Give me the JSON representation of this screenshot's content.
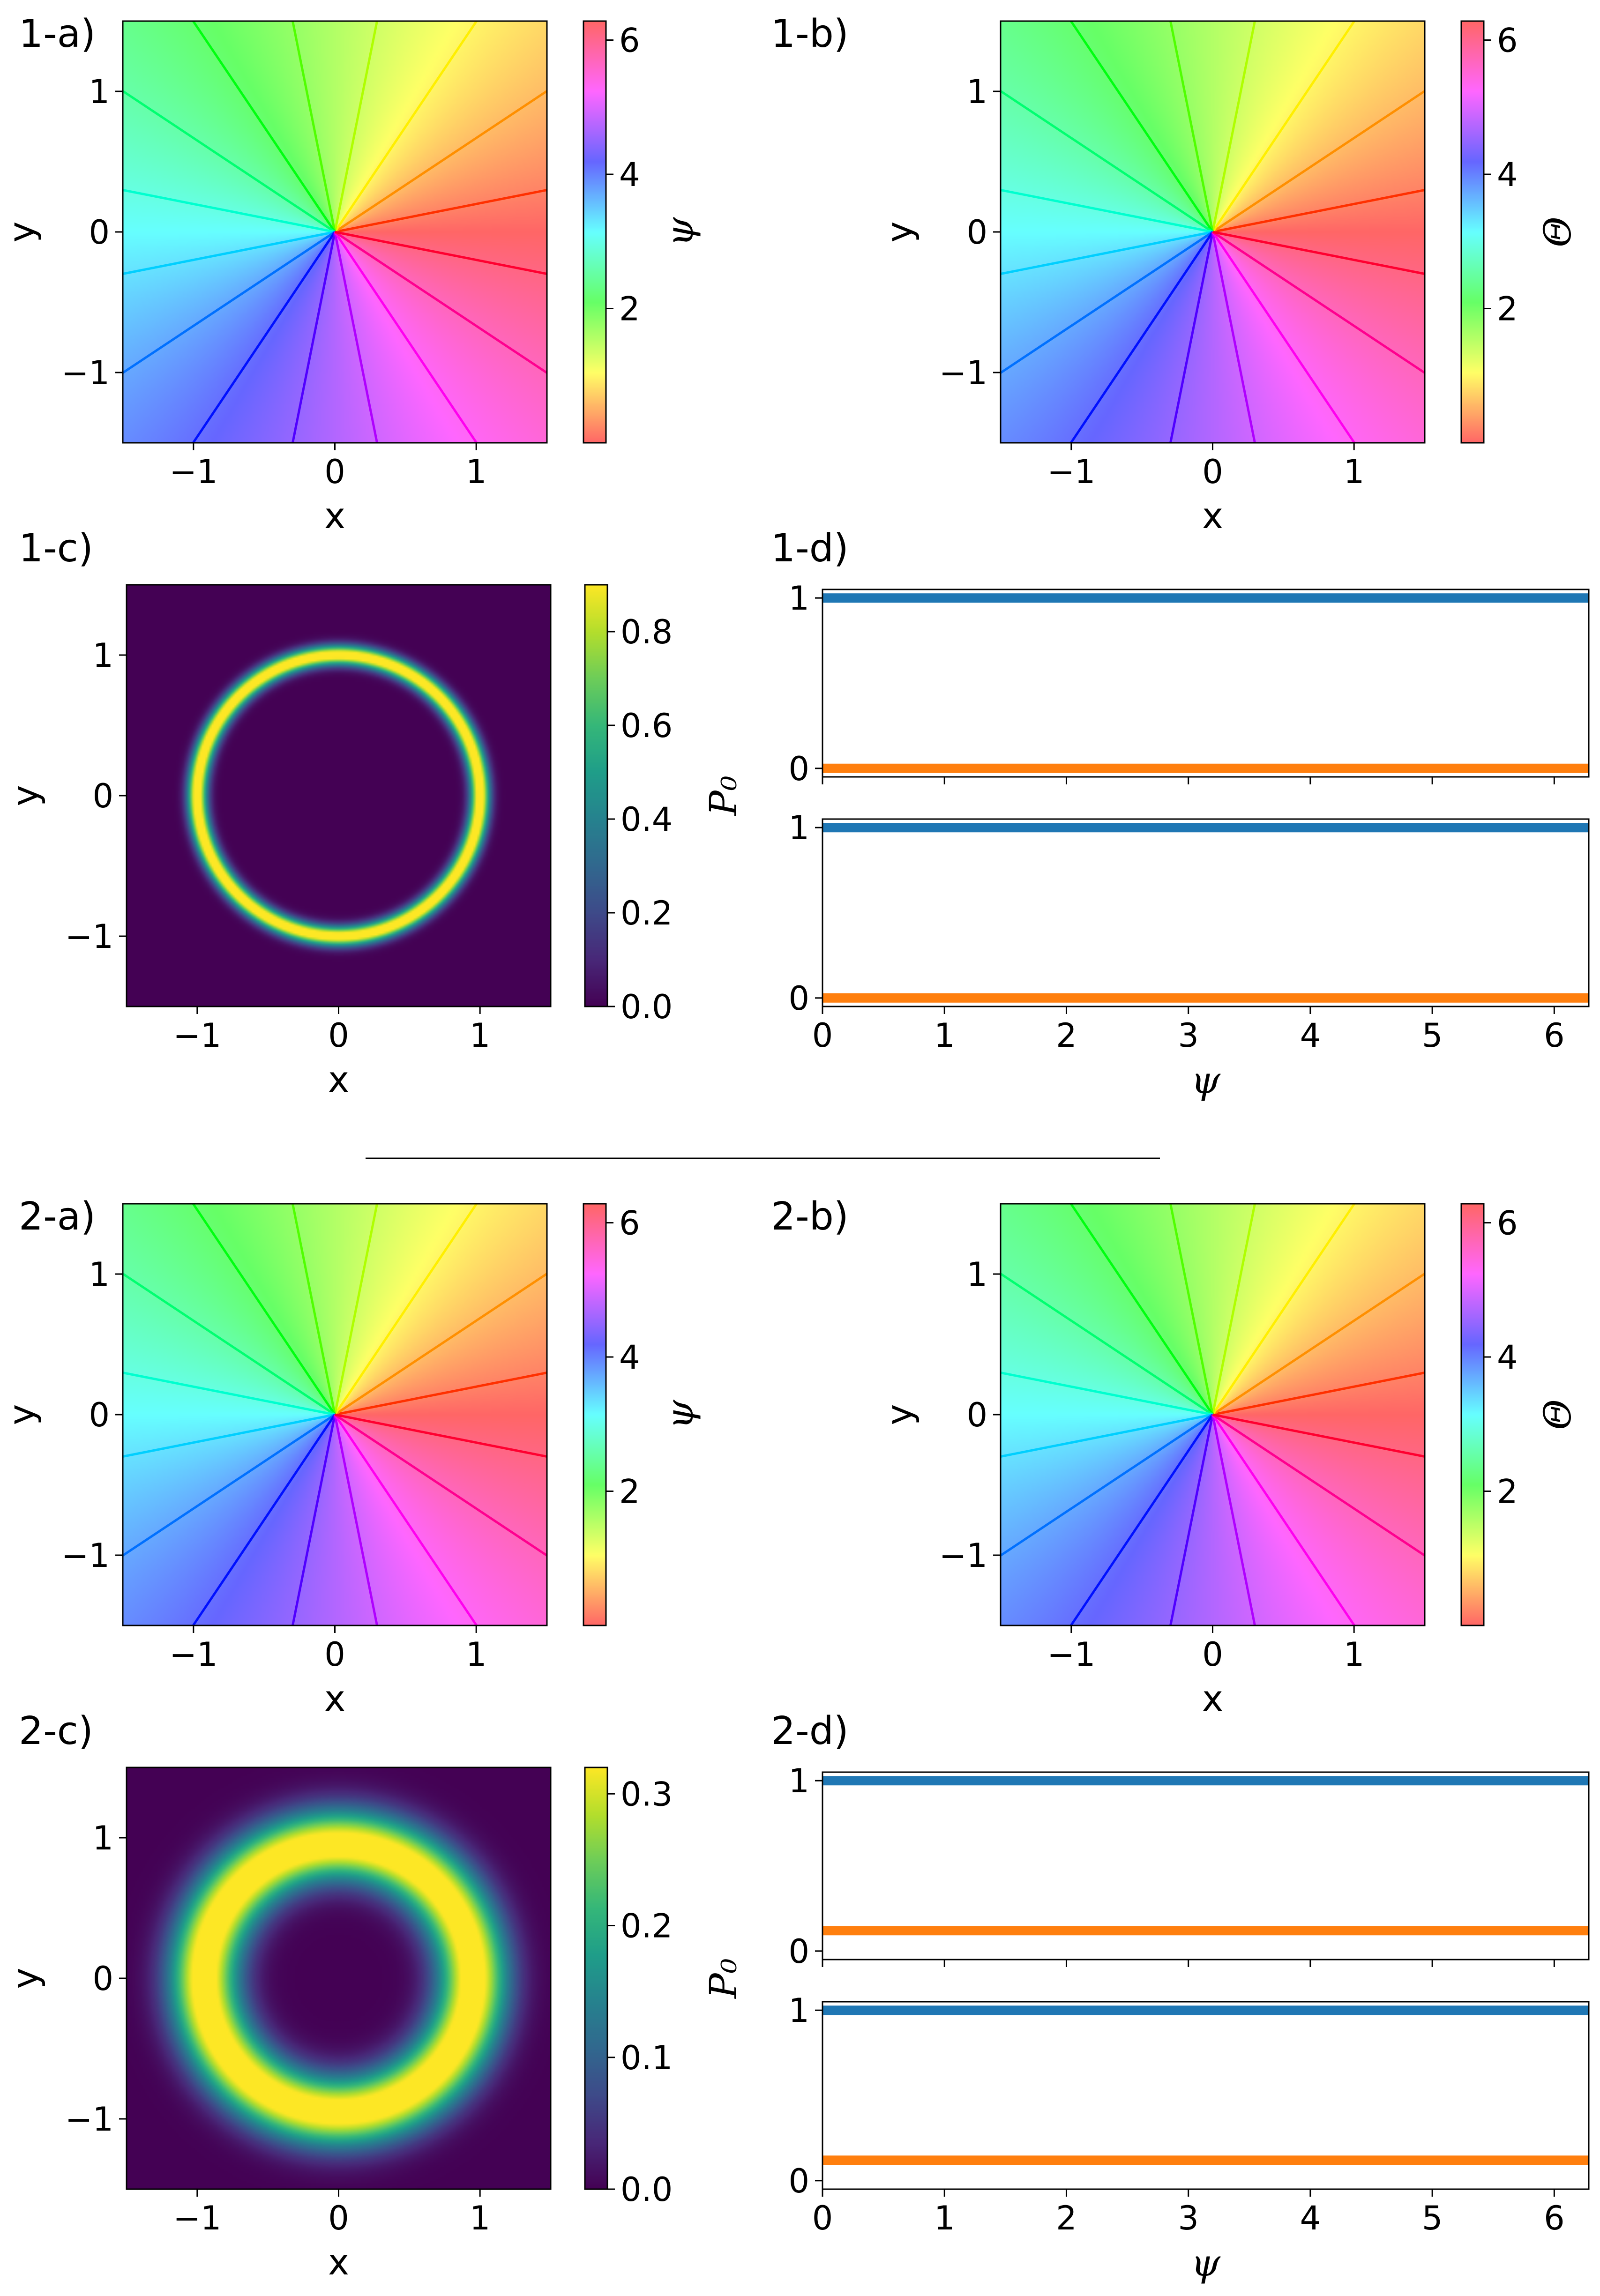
{
  "chart_data": [
    {
      "panel_label": "1-a)",
      "type": "heatmap",
      "field": "angle",
      "offset_deg": 0,
      "xlabel": "x",
      "ylabel": "y",
      "xlim": [
        -1.5,
        1.5
      ],
      "ylim": [
        -1.5,
        1.5
      ],
      "xticks": [
        "−1",
        "0",
        "1"
      ],
      "yticks": [
        "1",
        "0",
        "−1"
      ],
      "colorbar": {
        "label": "ψ",
        "range": [
          0,
          6.283
        ],
        "ticks": [
          "2",
          "4",
          "6"
        ],
        "colormap": "hsv"
      },
      "contour_levels": 16
    },
    {
      "panel_label": "1-b)",
      "type": "heatmap",
      "field": "angle",
      "offset_deg": 0,
      "xlabel": "x",
      "ylabel": "y",
      "xlim": [
        -1.5,
        1.5
      ],
      "ylim": [
        -1.5,
        1.5
      ],
      "xticks": [
        "−1",
        "0",
        "1"
      ],
      "yticks": [
        "1",
        "0",
        "−1"
      ],
      "colorbar": {
        "label": "Θ",
        "range": [
          0,
          6.283
        ],
        "ticks": [
          "2",
          "4",
          "6"
        ],
        "colormap": "hsv"
      },
      "contour_levels": 16
    },
    {
      "panel_label": "1-c)",
      "type": "heatmap",
      "field": "ring",
      "ring_radius": 1.0,
      "ring_width": 0.07,
      "peak": 0.9,
      "xlabel": "x",
      "ylabel": "y",
      "xlim": [
        -1.5,
        1.5
      ],
      "ylim": [
        -1.5,
        1.5
      ],
      "xticks": [
        "−1",
        "0",
        "1"
      ],
      "yticks": [
        "1",
        "0",
        "−1"
      ],
      "colorbar": {
        "label": "P₀",
        "range": [
          0,
          0.9
        ],
        "ticks": [
          "0.0",
          "0.2",
          "0.4",
          "0.6",
          "0.8"
        ],
        "colormap": "viridis"
      }
    },
    {
      "panel_label": "1-d)",
      "type": "line",
      "xlabel": "ψ",
      "xlim": [
        0,
        6.283
      ],
      "xticks": [
        "0",
        "1",
        "2",
        "3",
        "4",
        "5",
        "6"
      ],
      "subplots": [
        {
          "ylim": [
            -0.05,
            1.05
          ],
          "yticks": [
            "0",
            "1"
          ],
          "series": [
            {
              "color": "#1f77b4",
              "values": [
                1.0,
                1.0
              ]
            },
            {
              "color": "#ff7f0e",
              "values": [
                0.0,
                0.0
              ]
            }
          ]
        },
        {
          "ylim": [
            -0.05,
            1.05
          ],
          "yticks": [
            "0",
            "1"
          ],
          "series": [
            {
              "color": "#1f77b4",
              "values": [
                1.0,
                1.0
              ]
            },
            {
              "color": "#ff7f0e",
              "values": [
                0.0,
                0.0
              ]
            }
          ]
        }
      ]
    },
    {
      "panel_label": "2-a)",
      "type": "heatmap",
      "field": "angle",
      "offset_deg": 0,
      "xlabel": "x",
      "ylabel": "y",
      "xlim": [
        -1.5,
        1.5
      ],
      "ylim": [
        -1.5,
        1.5
      ],
      "xticks": [
        "−1",
        "0",
        "1"
      ],
      "yticks": [
        "1",
        "0",
        "−1"
      ],
      "colorbar": {
        "label": "ψ",
        "range": [
          0,
          6.283
        ],
        "ticks": [
          "2",
          "4",
          "6"
        ],
        "colormap": "hsv"
      },
      "contour_levels": 16
    },
    {
      "panel_label": "2-b)",
      "type": "heatmap",
      "field": "angle",
      "offset_deg": 0,
      "xlabel": "x",
      "ylabel": "y",
      "xlim": [
        -1.5,
        1.5
      ],
      "ylim": [
        -1.5,
        1.5
      ],
      "xticks": [
        "−1",
        "0",
        "1"
      ],
      "yticks": [
        "1",
        "0",
        "−1"
      ],
      "colorbar": {
        "label": "Θ",
        "range": [
          0,
          6.283
        ],
        "ticks": [
          "2",
          "4",
          "6"
        ],
        "colormap": "hsv"
      },
      "contour_levels": 16
    },
    {
      "panel_label": "2-c)",
      "type": "heatmap",
      "field": "ring",
      "ring_radius": 0.95,
      "ring_width": 0.25,
      "peak": 0.32,
      "xlabel": "x",
      "ylabel": "y",
      "xlim": [
        -1.5,
        1.5
      ],
      "ylim": [
        -1.5,
        1.5
      ],
      "xticks": [
        "−1",
        "0",
        "1"
      ],
      "yticks": [
        "1",
        "0",
        "−1"
      ],
      "colorbar": {
        "label": "P₀",
        "range": [
          0,
          0.32
        ],
        "ticks": [
          "0.0",
          "0.1",
          "0.2",
          "0.3"
        ],
        "colormap": "viridis"
      }
    },
    {
      "panel_label": "2-d)",
      "type": "line",
      "xlabel": "ψ",
      "xlim": [
        0,
        6.283
      ],
      "xticks": [
        "0",
        "1",
        "2",
        "3",
        "4",
        "5",
        "6"
      ],
      "subplots": [
        {
          "ylim": [
            -0.05,
            1.05
          ],
          "yticks": [
            "0",
            "1"
          ],
          "series": [
            {
              "color": "#1f77b4",
              "values": [
                1.0,
                1.0
              ]
            },
            {
              "color": "#ff7f0e",
              "values": [
                0.12,
                0.12
              ]
            }
          ]
        },
        {
          "ylim": [
            -0.05,
            1.05
          ],
          "yticks": [
            "0",
            "1"
          ],
          "series": [
            {
              "color": "#1f77b4",
              "values": [
                1.0,
                1.0
              ]
            },
            {
              "color": "#ff7f0e",
              "values": [
                0.12,
                0.12
              ]
            }
          ]
        }
      ]
    }
  ]
}
